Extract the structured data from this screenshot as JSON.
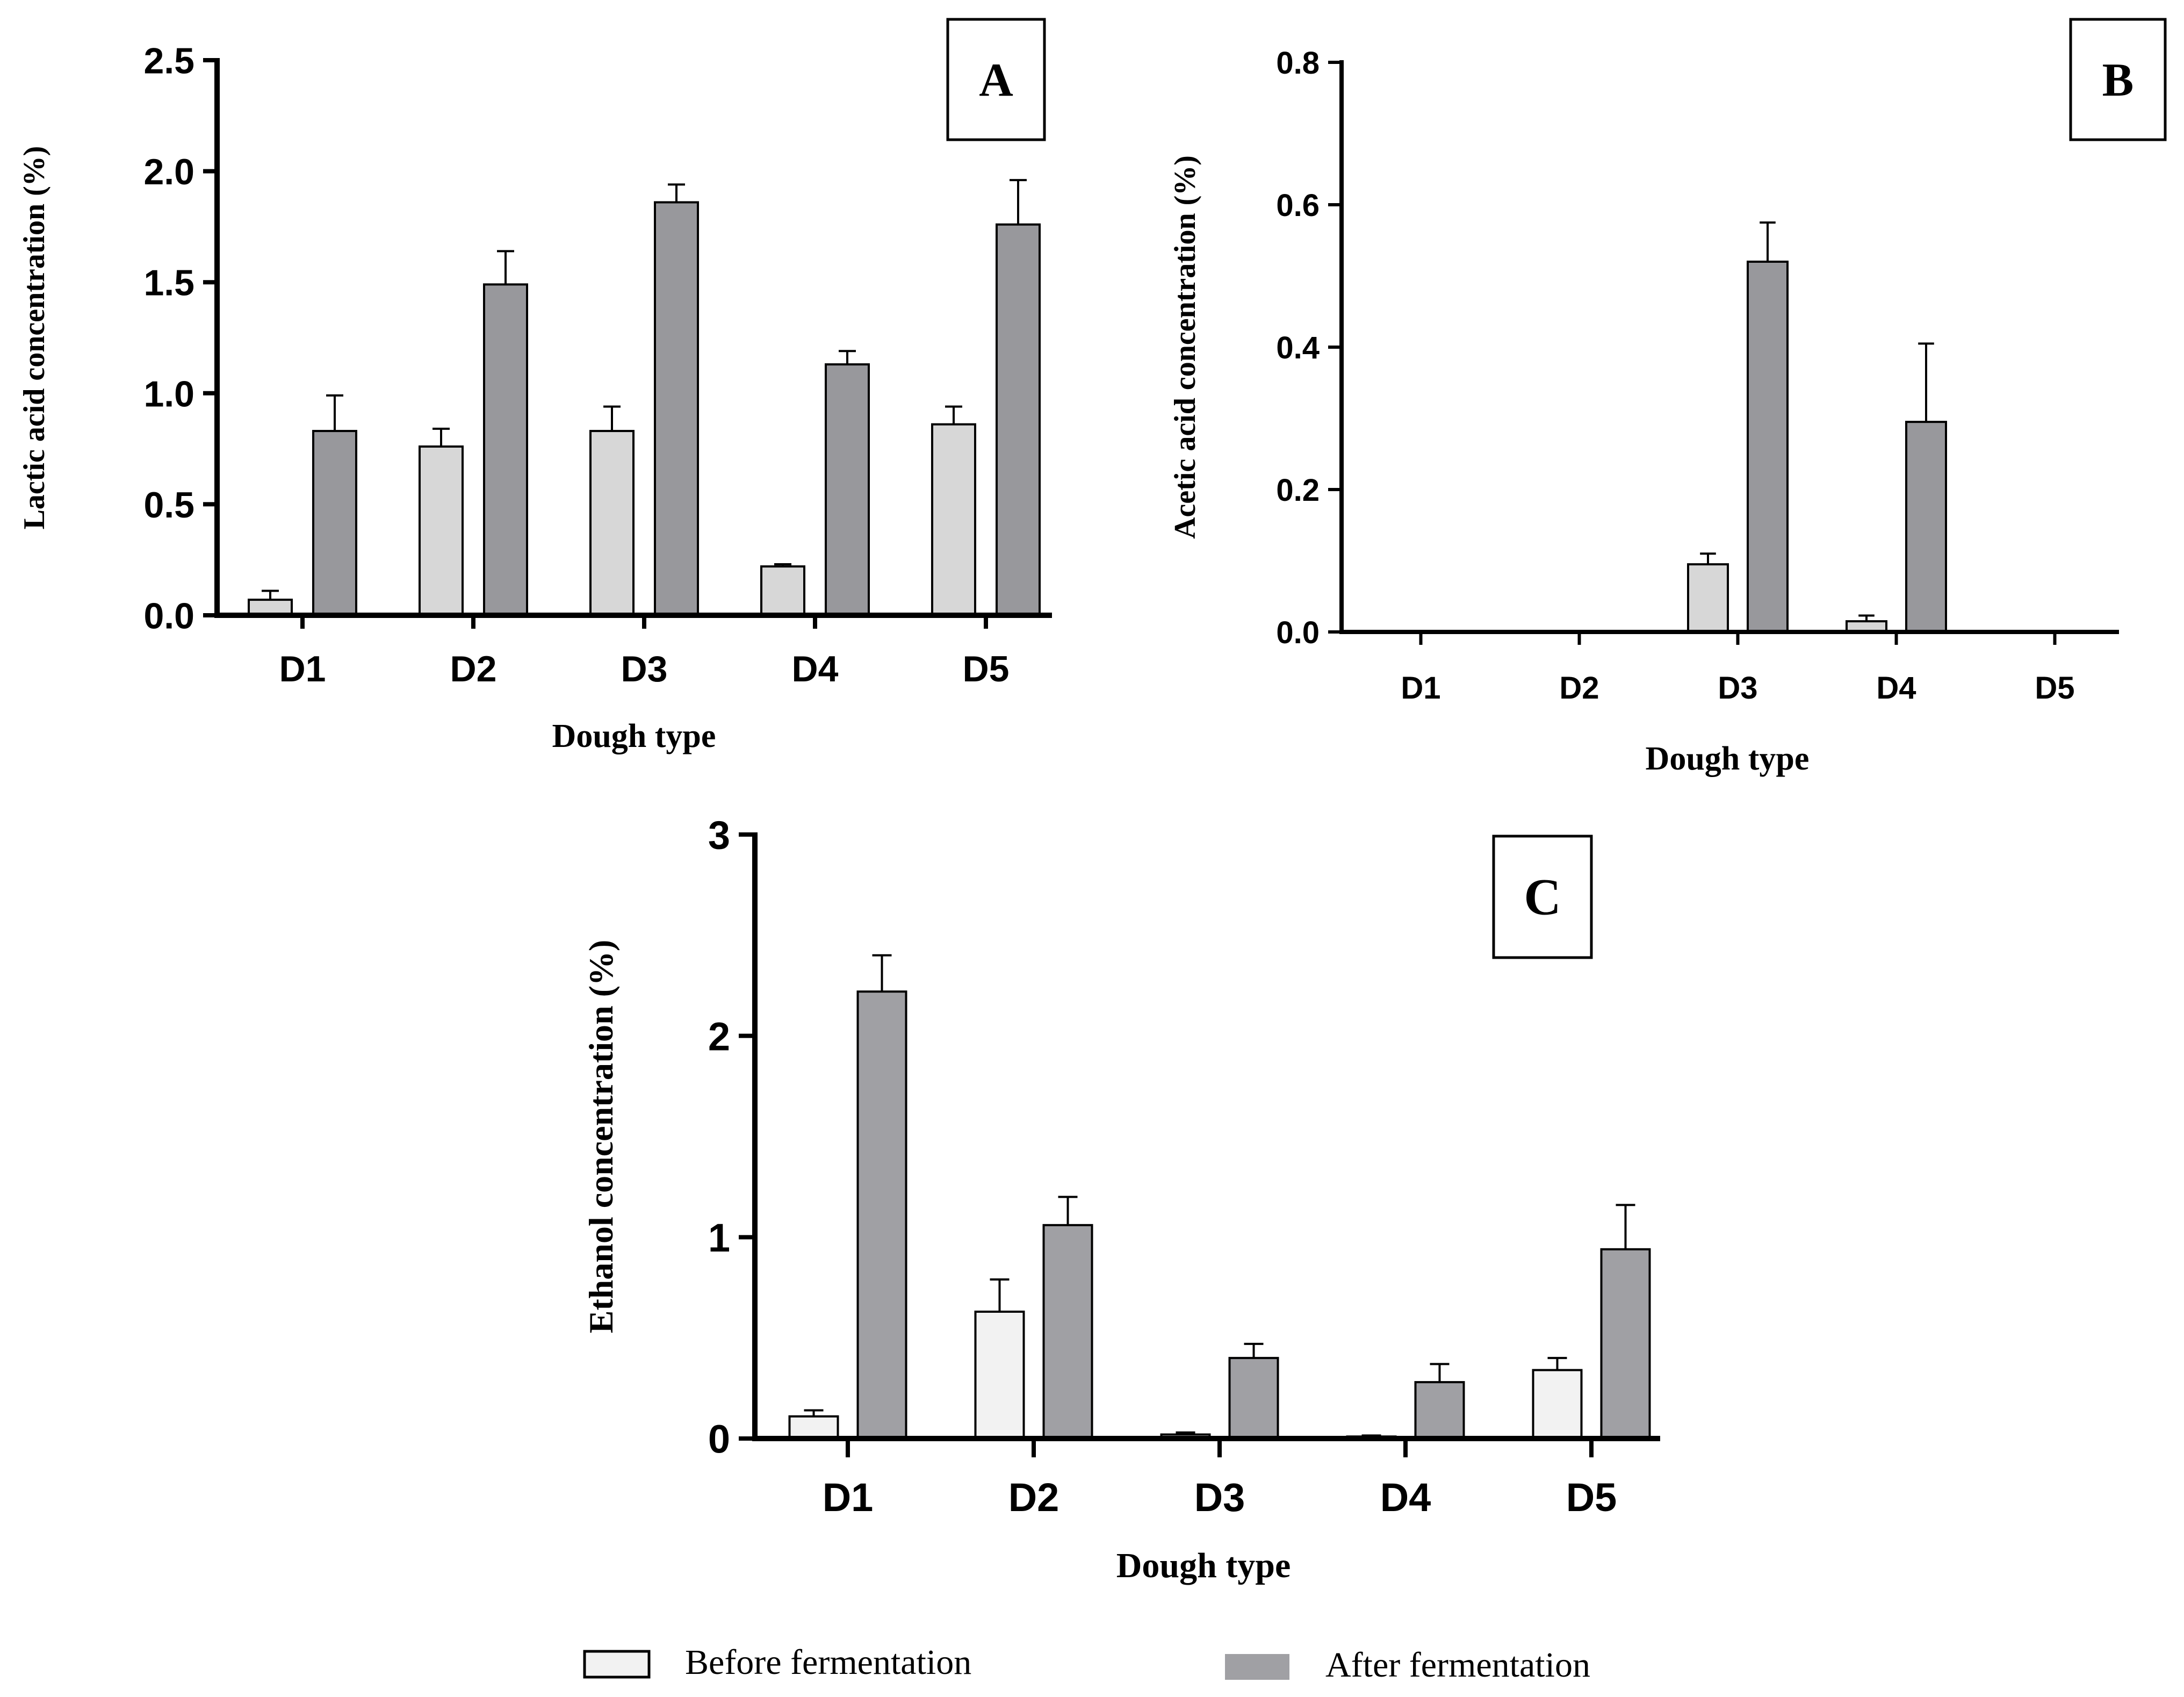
{
  "colors": {
    "axis": "#000000",
    "error_bar": "#000000",
    "bar_outline": "#000000"
  },
  "legend": {
    "position": "bottom-center",
    "items": [
      {
        "label": "Before fermentation",
        "color": "#f2f2f2",
        "icon": "outlined-swatch"
      },
      {
        "label": "After fermentation",
        "color": "#a0a0a4",
        "icon": "filled-swatch"
      }
    ]
  },
  "chart_data": [
    {
      "panel_label": "A",
      "type": "bar",
      "title": "",
      "xlabel": "Dough type",
      "ylabel": "Lactic acid concentration (%)",
      "categories": [
        "D1",
        "D2",
        "D3",
        "D4",
        "D5"
      ],
      "ylim": [
        0,
        2.5
      ],
      "yticks": [
        0.0,
        0.5,
        1.0,
        1.5,
        2.0,
        2.5
      ],
      "ytick_labels": [
        "0.0",
        "0.5",
        "1.0",
        "1.5",
        "2.0",
        "2.5"
      ],
      "grid": false,
      "series": [
        {
          "name": "Before fermentation",
          "color": "#d7d7d7",
          "values": [
            0.07,
            0.76,
            0.83,
            0.22,
            0.86
          ],
          "errors": [
            0.04,
            0.08,
            0.11,
            0.01,
            0.08
          ]
        },
        {
          "name": "After fermentation",
          "color": "#98989c",
          "values": [
            0.83,
            1.49,
            1.86,
            1.13,
            1.76
          ],
          "errors": [
            0.16,
            0.15,
            0.08,
            0.06,
            0.2
          ]
        }
      ]
    },
    {
      "panel_label": "B",
      "type": "bar",
      "title": "",
      "xlabel": "Dough type",
      "ylabel": "Acetic acid concentration (%)",
      "categories": [
        "D1",
        "D2",
        "D3",
        "D4",
        "D5"
      ],
      "ylim": [
        0,
        0.8
      ],
      "yticks": [
        0.0,
        0.2,
        0.4,
        0.6,
        0.8
      ],
      "ytick_labels": [
        "0.0",
        "0.2",
        "0.4",
        "0.6",
        "0.8"
      ],
      "grid": false,
      "series": [
        {
          "name": "Before fermentation",
          "color": "#d7d7d7",
          "values": [
            0,
            0,
            0.095,
            0.015,
            0
          ],
          "errors": [
            0,
            0,
            0.015,
            0.008,
            0
          ]
        },
        {
          "name": "After fermentation",
          "color": "#98989c",
          "values": [
            0,
            0,
            0.52,
            0.295,
            0
          ],
          "errors": [
            0,
            0,
            0.055,
            0.11,
            0
          ]
        }
      ]
    },
    {
      "panel_label": "C",
      "type": "bar",
      "title": "",
      "xlabel": "Dough type",
      "ylabel": "Ethanol concentration (%)",
      "categories": [
        "D1",
        "D2",
        "D3",
        "D4",
        "D5"
      ],
      "ylim": [
        0,
        3
      ],
      "yticks": [
        0,
        1,
        2,
        3
      ],
      "ytick_labels": [
        "0",
        "1",
        "2",
        "3"
      ],
      "grid": false,
      "series": [
        {
          "name": "Before fermentation",
          "color": "#f2f2f2",
          "values": [
            0.11,
            0.63,
            0.02,
            0.01,
            0.34
          ],
          "errors": [
            0.03,
            0.16,
            0.01,
            0.005,
            0.06
          ]
        },
        {
          "name": "After fermentation",
          "color": "#a0a0a4",
          "values": [
            2.22,
            1.06,
            0.4,
            0.28,
            0.94
          ],
          "errors": [
            0.18,
            0.14,
            0.07,
            0.09,
            0.22
          ]
        }
      ]
    }
  ]
}
